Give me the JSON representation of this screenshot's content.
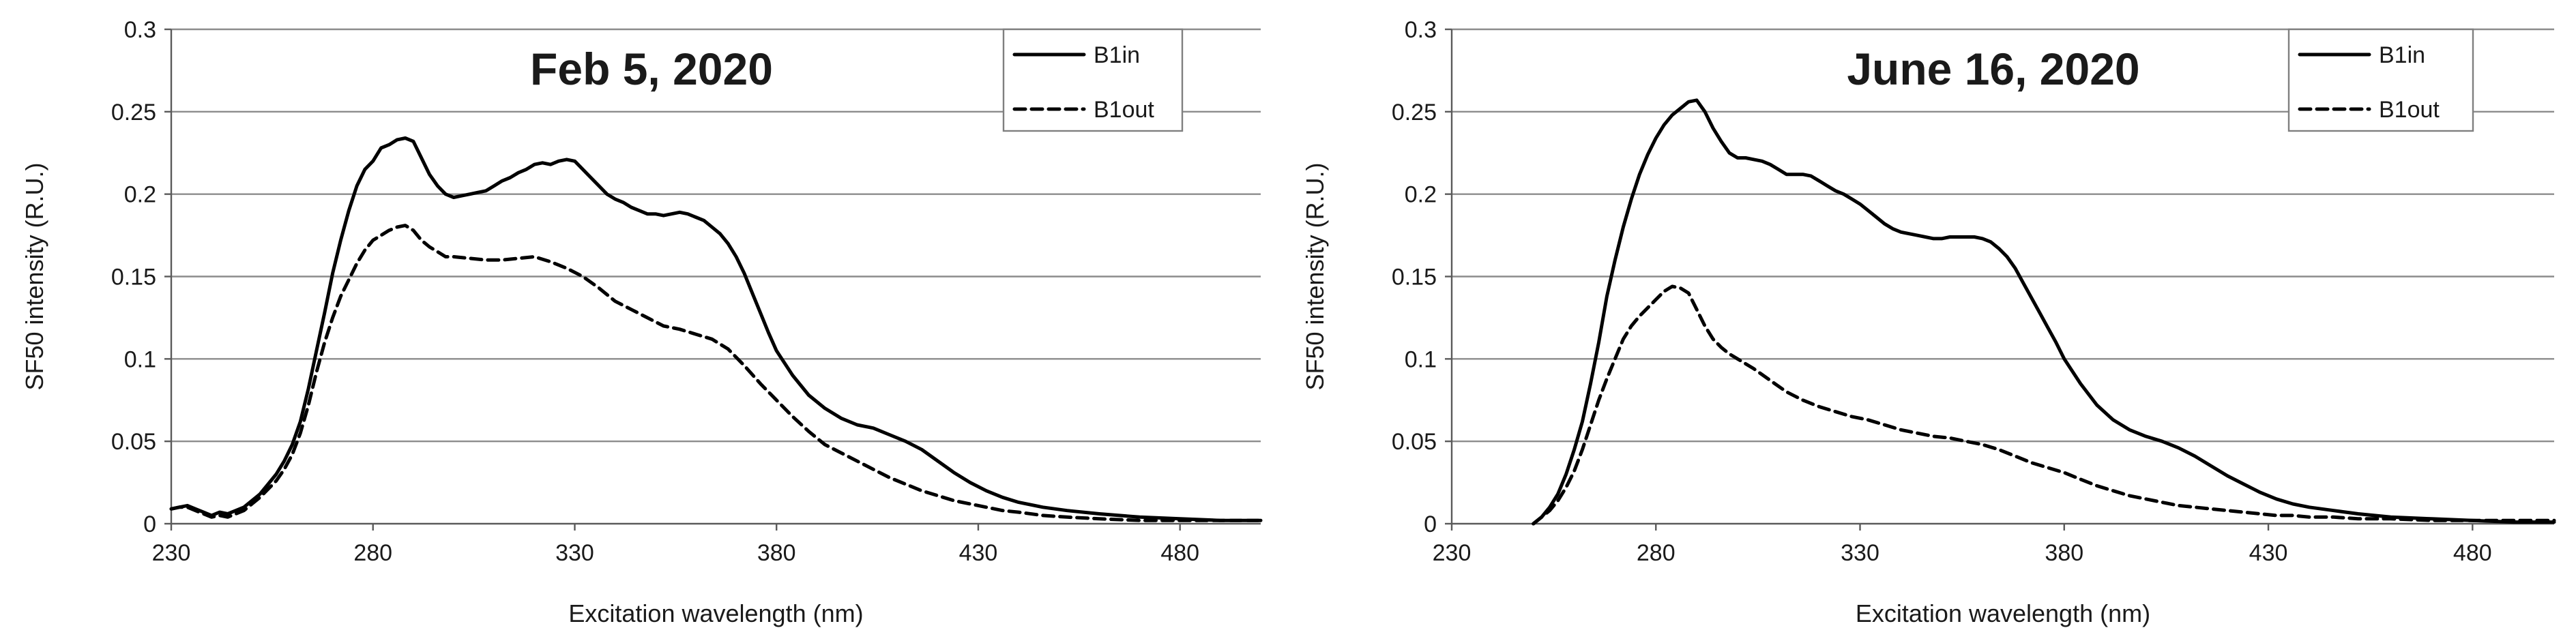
{
  "chart_data": [
    {
      "type": "line",
      "title": "Feb 5, 2020",
      "xlabel": "Excitation wavelength (nm)",
      "ylabel": "SF50 intensity (R.U.)",
      "xlim": [
        230,
        500
      ],
      "ylim": [
        0,
        0.3
      ],
      "xticks": [
        230,
        280,
        330,
        380,
        430,
        480
      ],
      "yticks": [
        0,
        0.05,
        0.1,
        0.15,
        0.2,
        0.25,
        0.3
      ],
      "ytick_labels": [
        "0",
        "0.05",
        "0.1",
        "0.15",
        "0.2",
        "0.25",
        "0.3"
      ],
      "grid": true,
      "legend_position": "top-right",
      "series": [
        {
          "name": "B1in",
          "style": "solid",
          "x": [
            230,
            232,
            234,
            236,
            238,
            240,
            242,
            244,
            246,
            248,
            250,
            252,
            254,
            256,
            258,
            260,
            262,
            264,
            266,
            268,
            270,
            272,
            274,
            276,
            278,
            280,
            282,
            284,
            286,
            288,
            290,
            292,
            294,
            296,
            298,
            300,
            302,
            304,
            306,
            308,
            310,
            312,
            314,
            316,
            318,
            320,
            322,
            324,
            326,
            328,
            330,
            332,
            334,
            336,
            338,
            340,
            342,
            344,
            346,
            348,
            350,
            352,
            354,
            356,
            358,
            360,
            362,
            364,
            366,
            368,
            370,
            372,
            374,
            376,
            378,
            380,
            384,
            388,
            392,
            396,
            400,
            404,
            408,
            412,
            416,
            420,
            424,
            428,
            432,
            436,
            440,
            446,
            452,
            460,
            470,
            480,
            490,
            500
          ],
          "y": [
            0.009,
            0.01,
            0.011,
            0.009,
            0.007,
            0.005,
            0.007,
            0.006,
            0.008,
            0.01,
            0.014,
            0.018,
            0.024,
            0.03,
            0.038,
            0.048,
            0.062,
            0.082,
            0.105,
            0.128,
            0.152,
            0.172,
            0.19,
            0.205,
            0.215,
            0.22,
            0.228,
            0.23,
            0.233,
            0.234,
            0.232,
            0.222,
            0.212,
            0.205,
            0.2,
            0.198,
            0.199,
            0.2,
            0.201,
            0.202,
            0.205,
            0.208,
            0.21,
            0.213,
            0.215,
            0.218,
            0.219,
            0.218,
            0.22,
            0.221,
            0.22,
            0.215,
            0.21,
            0.205,
            0.2,
            0.197,
            0.195,
            0.192,
            0.19,
            0.188,
            0.188,
            0.187,
            0.188,
            0.189,
            0.188,
            0.186,
            0.184,
            0.18,
            0.176,
            0.17,
            0.162,
            0.152,
            0.14,
            0.128,
            0.116,
            0.105,
            0.09,
            0.078,
            0.07,
            0.064,
            0.06,
            0.058,
            0.054,
            0.05,
            0.045,
            0.038,
            0.031,
            0.025,
            0.02,
            0.016,
            0.013,
            0.01,
            0.008,
            0.006,
            0.004,
            0.003,
            0.002,
            0.002
          ]
        },
        {
          "name": "B1out",
          "style": "dashed",
          "x": [
            230,
            232,
            234,
            236,
            238,
            240,
            242,
            244,
            246,
            248,
            250,
            252,
            254,
            256,
            258,
            260,
            262,
            264,
            266,
            268,
            270,
            272,
            274,
            276,
            278,
            280,
            282,
            284,
            286,
            288,
            290,
            292,
            294,
            296,
            298,
            300,
            304,
            308,
            312,
            316,
            320,
            324,
            328,
            332,
            336,
            340,
            344,
            348,
            352,
            356,
            360,
            364,
            368,
            372,
            376,
            380,
            384,
            388,
            392,
            396,
            400,
            404,
            408,
            412,
            416,
            420,
            424,
            428,
            432,
            436,
            440,
            446,
            452,
            460,
            470,
            480,
            490,
            500
          ],
          "y": [
            0.009,
            0.01,
            0.01,
            0.008,
            0.006,
            0.004,
            0.005,
            0.004,
            0.006,
            0.008,
            0.012,
            0.016,
            0.021,
            0.026,
            0.033,
            0.042,
            0.055,
            0.072,
            0.092,
            0.11,
            0.125,
            0.138,
            0.148,
            0.158,
            0.166,
            0.172,
            0.175,
            0.178,
            0.18,
            0.181,
            0.178,
            0.172,
            0.168,
            0.165,
            0.162,
            0.162,
            0.161,
            0.16,
            0.16,
            0.161,
            0.162,
            0.159,
            0.155,
            0.15,
            0.143,
            0.135,
            0.13,
            0.125,
            0.12,
            0.118,
            0.115,
            0.112,
            0.106,
            0.096,
            0.085,
            0.075,
            0.065,
            0.056,
            0.048,
            0.043,
            0.038,
            0.033,
            0.028,
            0.024,
            0.02,
            0.017,
            0.014,
            0.012,
            0.01,
            0.008,
            0.007,
            0.005,
            0.004,
            0.003,
            0.002,
            0.002,
            0.002,
            0.002
          ]
        }
      ]
    },
    {
      "type": "line",
      "title": "June 16, 2020",
      "xlabel": "Excitation wavelength (nm)",
      "ylabel": "SF50 intensity (R.U.)",
      "xlim": [
        230,
        500
      ],
      "ylim": [
        0,
        0.3
      ],
      "xticks": [
        230,
        280,
        330,
        380,
        430,
        480
      ],
      "yticks": [
        0,
        0.05,
        0.1,
        0.15,
        0.2,
        0.25,
        0.3
      ],
      "ytick_labels": [
        "0",
        "0.05",
        "0.1",
        "0.15",
        "0.2",
        "0.25",
        "0.3"
      ],
      "grid": true,
      "legend_position": "top-right",
      "series": [
        {
          "name": "B1in",
          "style": "solid",
          "x": [
            250,
            252,
            254,
            256,
            258,
            260,
            262,
            264,
            266,
            268,
            270,
            272,
            274,
            276,
            278,
            280,
            282,
            284,
            286,
            288,
            290,
            292,
            294,
            296,
            298,
            300,
            302,
            304,
            306,
            308,
            310,
            312,
            314,
            316,
            318,
            320,
            322,
            324,
            326,
            328,
            330,
            332,
            334,
            336,
            338,
            340,
            342,
            344,
            346,
            348,
            350,
            352,
            354,
            356,
            358,
            360,
            362,
            364,
            366,
            368,
            370,
            372,
            374,
            376,
            378,
            380,
            384,
            388,
            392,
            396,
            400,
            404,
            408,
            412,
            416,
            420,
            424,
            428,
            432,
            436,
            440,
            446,
            452,
            460,
            470,
            480,
            490,
            500
          ],
          "y": [
            0.0,
            0.004,
            0.01,
            0.018,
            0.03,
            0.045,
            0.062,
            0.085,
            0.11,
            0.138,
            0.16,
            0.18,
            0.197,
            0.212,
            0.224,
            0.234,
            0.242,
            0.248,
            0.252,
            0.256,
            0.257,
            0.25,
            0.24,
            0.232,
            0.225,
            0.222,
            0.222,
            0.221,
            0.22,
            0.218,
            0.215,
            0.212,
            0.212,
            0.212,
            0.211,
            0.208,
            0.205,
            0.202,
            0.2,
            0.197,
            0.194,
            0.19,
            0.186,
            0.182,
            0.179,
            0.177,
            0.176,
            0.175,
            0.174,
            0.173,
            0.173,
            0.174,
            0.174,
            0.174,
            0.174,
            0.173,
            0.171,
            0.167,
            0.162,
            0.155,
            0.146,
            0.137,
            0.128,
            0.119,
            0.11,
            0.1,
            0.085,
            0.072,
            0.063,
            0.057,
            0.053,
            0.05,
            0.046,
            0.041,
            0.035,
            0.029,
            0.024,
            0.019,
            0.015,
            0.012,
            0.01,
            0.008,
            0.006,
            0.004,
            0.003,
            0.002,
            0.001,
            0.001
          ]
        },
        {
          "name": "B1out",
          "style": "dashed",
          "x": [
            250,
            252,
            254,
            256,
            258,
            260,
            262,
            264,
            266,
            268,
            270,
            272,
            274,
            276,
            278,
            280,
            282,
            284,
            286,
            288,
            290,
            292,
            294,
            296,
            298,
            300,
            304,
            308,
            312,
            316,
            320,
            324,
            328,
            332,
            336,
            340,
            344,
            348,
            352,
            356,
            360,
            364,
            368,
            372,
            376,
            380,
            384,
            388,
            392,
            396,
            400,
            404,
            408,
            412,
            416,
            420,
            424,
            428,
            432,
            436,
            440,
            446,
            452,
            460,
            470,
            480,
            490,
            500
          ],
          "y": [
            0.0,
            0.004,
            0.008,
            0.014,
            0.022,
            0.032,
            0.045,
            0.06,
            0.075,
            0.088,
            0.1,
            0.112,
            0.12,
            0.126,
            0.131,
            0.136,
            0.141,
            0.144,
            0.143,
            0.14,
            0.13,
            0.12,
            0.112,
            0.107,
            0.103,
            0.1,
            0.094,
            0.087,
            0.08,
            0.075,
            0.071,
            0.068,
            0.065,
            0.063,
            0.06,
            0.057,
            0.055,
            0.053,
            0.052,
            0.05,
            0.048,
            0.045,
            0.041,
            0.037,
            0.034,
            0.031,
            0.027,
            0.023,
            0.02,
            0.017,
            0.015,
            0.013,
            0.011,
            0.01,
            0.009,
            0.008,
            0.007,
            0.006,
            0.005,
            0.005,
            0.004,
            0.004,
            0.003,
            0.003,
            0.002,
            0.002,
            0.002,
            0.002
          ]
        }
      ]
    }
  ]
}
